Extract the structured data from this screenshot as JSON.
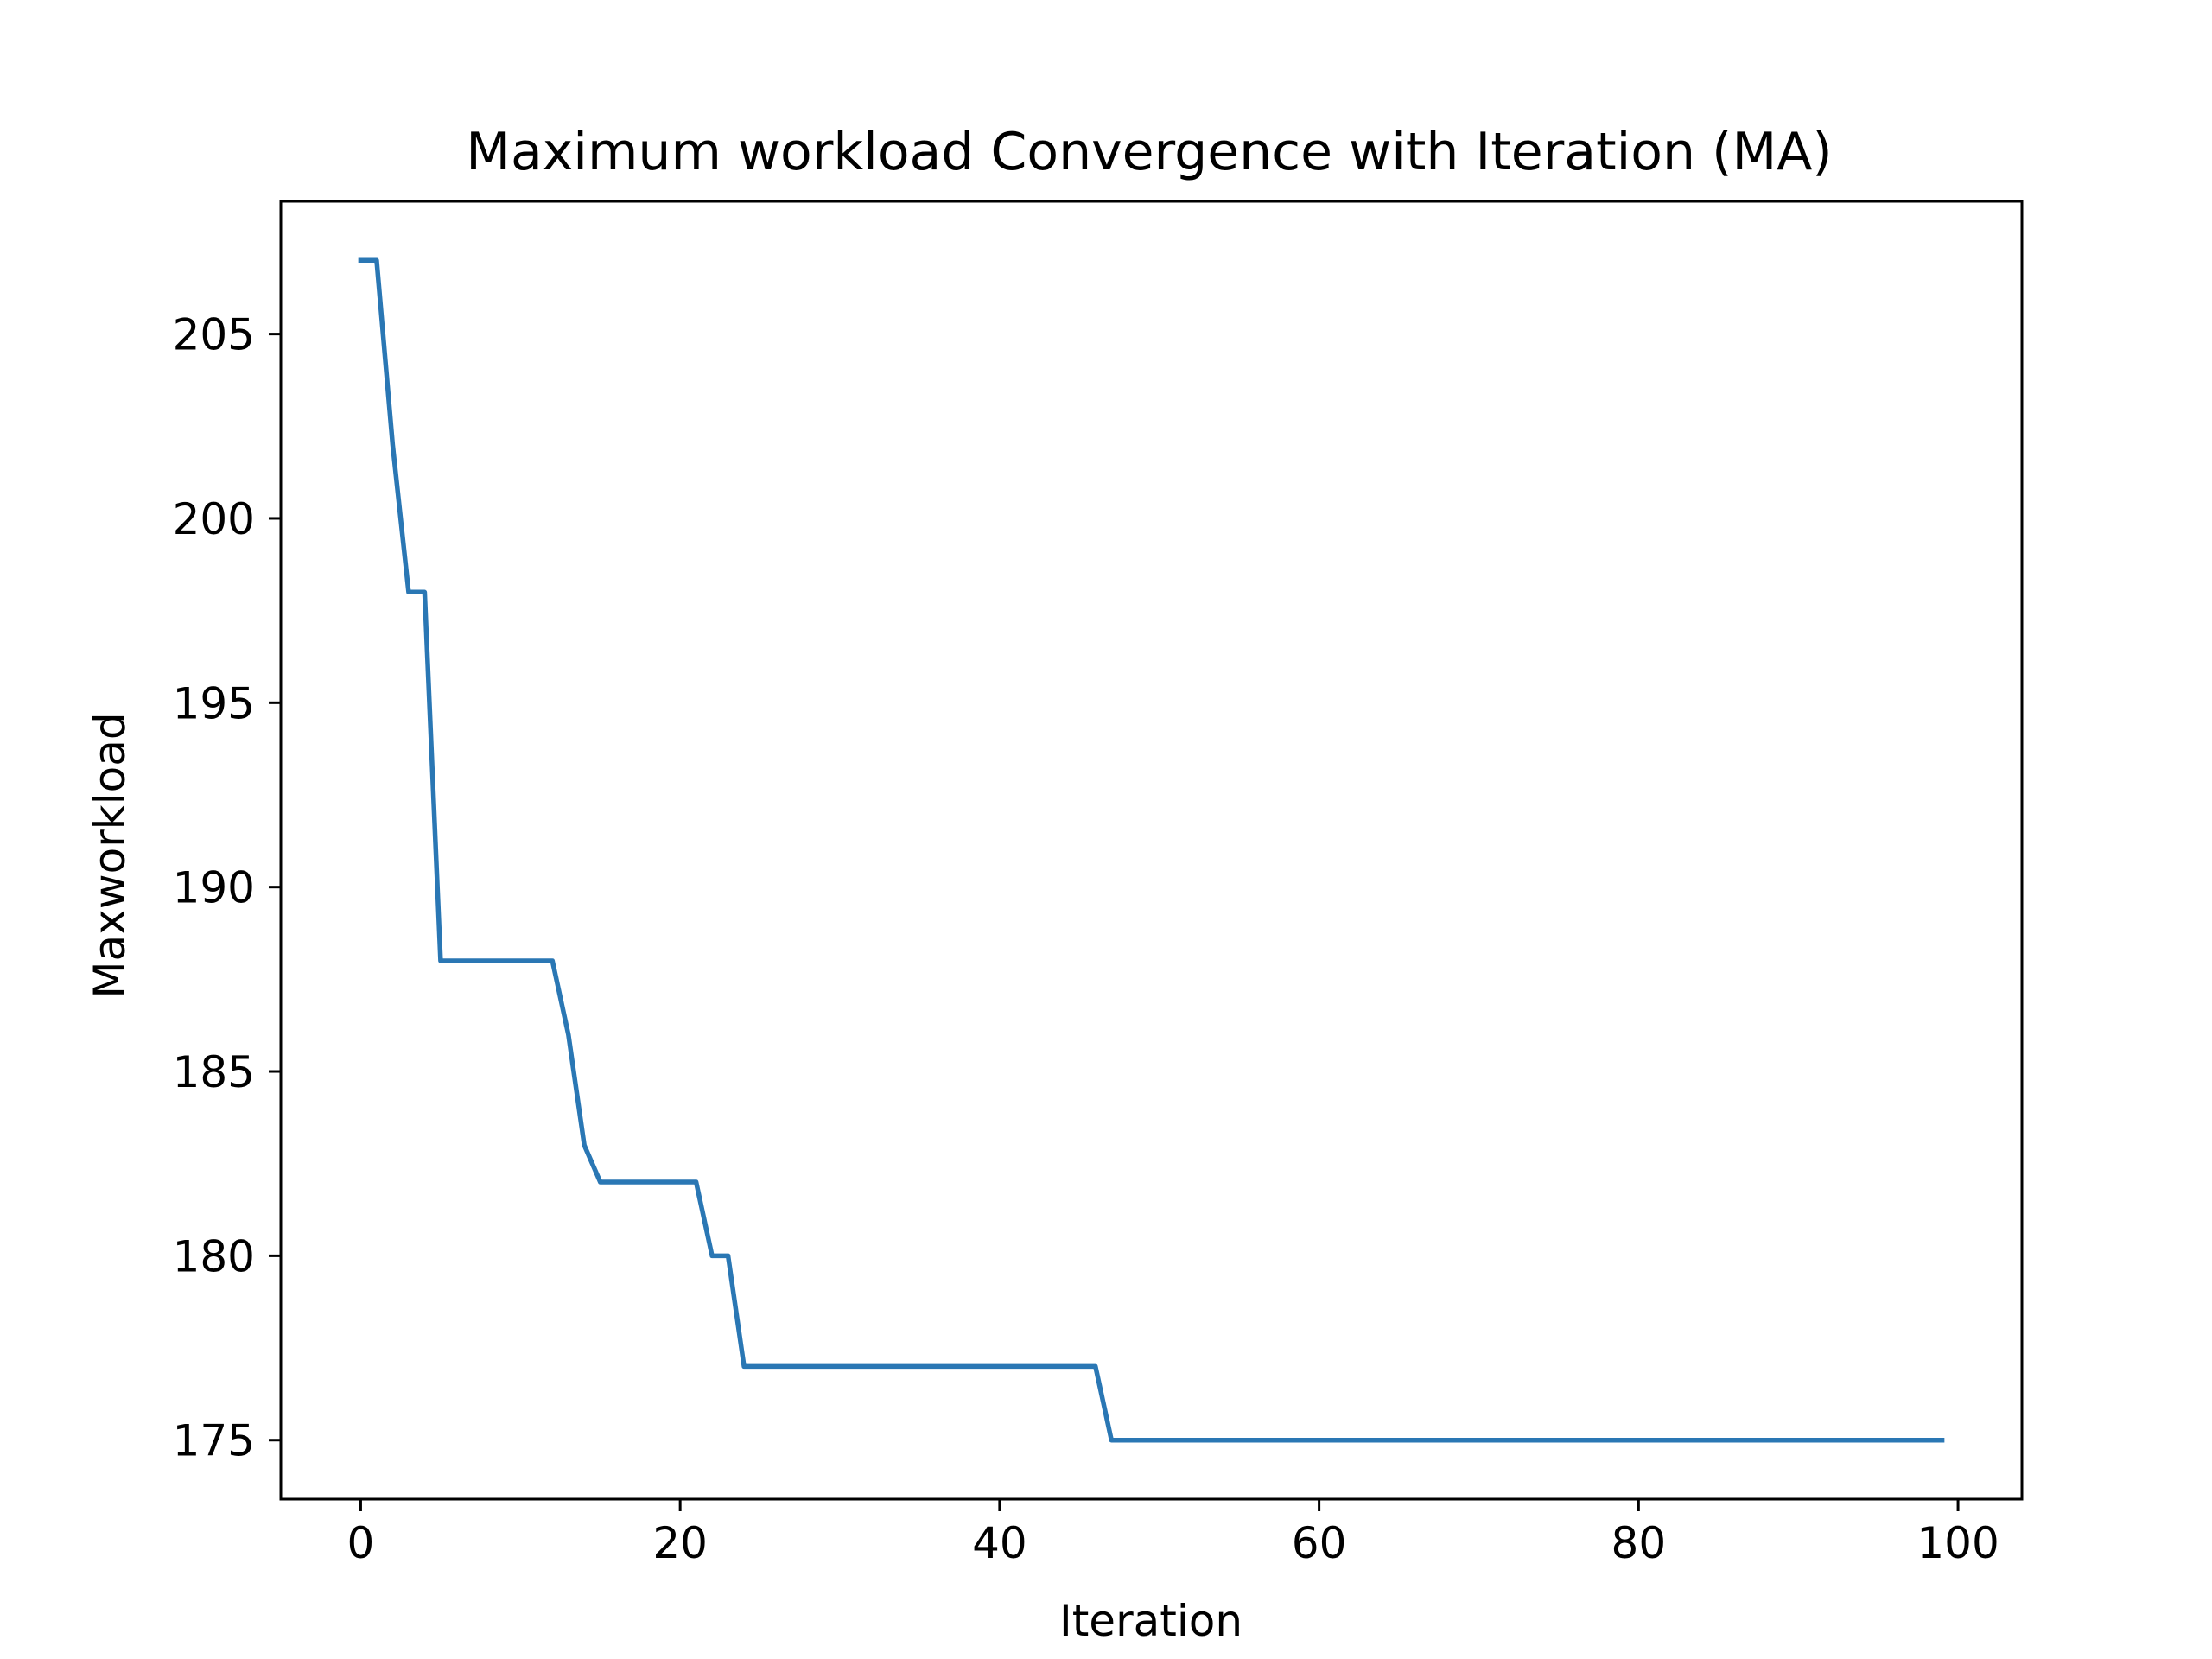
{
  "chart_data": {
    "type": "line",
    "title": "Maximum workload Convergence with Iteration (MA)",
    "xlabel": "Iteration",
    "ylabel": "Maxworkload",
    "xlim": [
      -5,
      104
    ],
    "ylim": [
      173.4,
      208.6
    ],
    "xticks": [
      0,
      20,
      40,
      60,
      80,
      100
    ],
    "xtick_labels": [
      "0",
      "20",
      "40",
      "60",
      "80",
      "100"
    ],
    "yticks": [
      175,
      180,
      185,
      190,
      195,
      200,
      205
    ],
    "ytick_labels": [
      "175",
      "180",
      "185",
      "190",
      "195",
      "200",
      "205"
    ],
    "grid": false,
    "legend": "none",
    "series": [
      {
        "color": "#2a77b4",
        "points": [
          [
            0,
            207
          ],
          [
            1,
            207
          ],
          [
            2,
            202
          ],
          [
            3,
            198
          ],
          [
            4,
            198
          ],
          [
            5,
            188
          ],
          [
            12,
            188
          ],
          [
            13,
            186
          ],
          [
            14,
            183
          ],
          [
            15,
            182
          ],
          [
            21,
            182
          ],
          [
            22,
            180
          ],
          [
            23,
            180
          ],
          [
            24,
            177
          ],
          [
            46,
            177
          ],
          [
            47,
            175
          ],
          [
            99,
            175
          ]
        ]
      }
    ]
  }
}
